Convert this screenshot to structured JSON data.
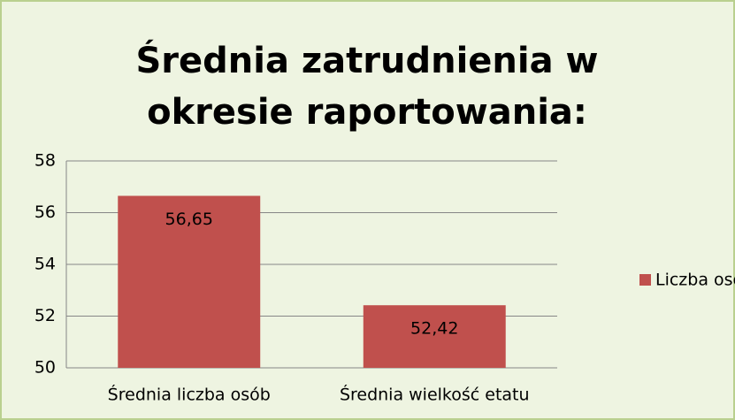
{
  "chart_data": {
    "type": "bar",
    "title": "Średnia zatrudnienia w okresie raportowania:",
    "categories": [
      "Średnia liczba osób",
      "Średnia wielkość etatu"
    ],
    "series": [
      {
        "name": "Liczba osób",
        "color": "#c0504d",
        "values": [
          56.65,
          52.42
        ],
        "value_labels": [
          "56,65",
          "52,42"
        ]
      }
    ],
    "ylim": [
      50,
      58
    ],
    "yticks": [
      50,
      52,
      54,
      56,
      58
    ],
    "grid": true,
    "legend": "right"
  }
}
